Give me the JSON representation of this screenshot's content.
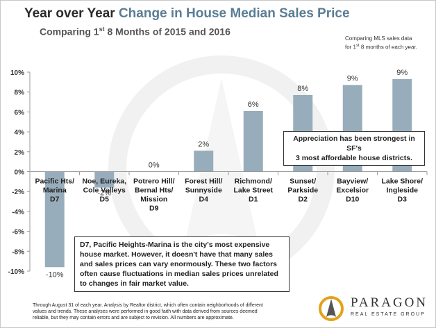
{
  "header": {
    "title_part1": "Year over Year ",
    "title_part2": "Change in House Median Sales Price",
    "subtitle_main": "Comparing 1",
    "subtitle_sup": "st",
    "subtitle_rest": " 8 Months of 2015 and 2016"
  },
  "note": {
    "line1": "Comparing MLS sales data",
    "line2_pre": "for 1",
    "line2_sup": "st",
    "line2_post": " 8 months of each year."
  },
  "chart_data": {
    "type": "bar",
    "title": "Year over Year Change in House Median Sales Price",
    "subtitle": "Comparing 1st 8 Months of 2015 and 2016",
    "xlabel": "",
    "ylabel": "",
    "ylim": [
      -10,
      10
    ],
    "yticks": [
      "10%",
      "8%",
      "6%",
      "4%",
      "2%",
      "0%",
      "-2%",
      "-4%",
      "-6%",
      "-8%",
      "-10%"
    ],
    "ytick_values": [
      10,
      8,
      6,
      4,
      2,
      0,
      -2,
      -4,
      -6,
      -8,
      -10
    ],
    "grid": false,
    "bar_color": "#98adbb",
    "categories": [
      [
        "Pacific Hts/",
        "Marina",
        "D7"
      ],
      [
        "Noe, Eureka,",
        "Cole Valleys",
        "D5"
      ],
      [
        "Potrero Hill/",
        "Bernal Hts/",
        "Mission",
        "D9"
      ],
      [
        "Forest Hill/",
        "Sunnyside",
        "D4"
      ],
      [
        "Richmond/",
        "Lake Street",
        "D1"
      ],
      [
        "Sunset/",
        "Parkside",
        "D2"
      ],
      [
        "Bayview/",
        "Excelsior",
        "D10"
      ],
      [
        "Lake Shore/",
        "Ingleside",
        "D3"
      ]
    ],
    "values": [
      -9.6,
      -1.6,
      0,
      2.1,
      6.1,
      7.7,
      8.7,
      9.3
    ],
    "labels": [
      "-10%",
      "-2%",
      "0%",
      "2%",
      "6%",
      "8%",
      "9%",
      "9%"
    ]
  },
  "callouts": {
    "top_line1": "Appreciation has been strongest in SF's",
    "top_line2": "3 most affordable house districts.",
    "bottom_line1": "D7, Pacific Heights-Marina is the city's most expensive",
    "bottom_line2": "house market. However, it doesn't have that many sales",
    "bottom_line3": "and sales prices can vary enormously. These two factors",
    "bottom_line4": "often cause fluctuations in median sales prices unrelated",
    "bottom_line5": "to changes in fair market value."
  },
  "footer": {
    "line1": "Through August 31 of each year. Analysis by Realtor district, which often contain neighborhoods of different",
    "line2": "values and trends. These analyses were performed in good faith with data derived from sources deemed",
    "line3": "reliable, but they may contain errors and are subject to revision. All numbers are approximate."
  },
  "logo": {
    "name": "PARAGON",
    "tagline": "REAL ESTATE GROUP"
  }
}
